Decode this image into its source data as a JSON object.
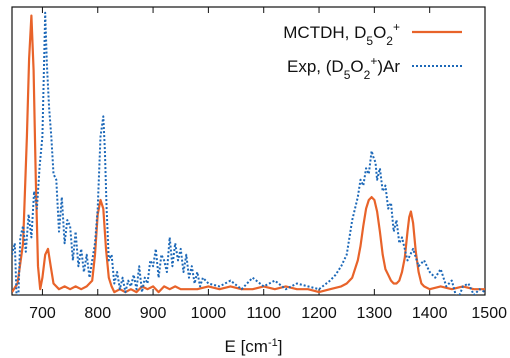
{
  "chart_data": {
    "type": "line",
    "xlabel_main": "E [cm",
    "xlabel_sup": "-1",
    "xlabel_close": "]",
    "ylabel": "",
    "xlim": [
      645,
      1500
    ],
    "ylim": [
      0,
      1.0
    ],
    "x_ticks": [
      700,
      800,
      900,
      1000,
      1100,
      1200,
      1300,
      1400,
      1500
    ],
    "grid": false,
    "legend_position": "top-right",
    "legend": [
      {
        "parts": [
          {
            "t": "MCTDH, D",
            "s": "normal"
          },
          {
            "t": "5",
            "s": "sub"
          },
          {
            "t": "O",
            "s": "normal"
          },
          {
            "t": "2",
            "s": "sub"
          },
          {
            "t": "+",
            "s": "sup"
          }
        ]
      },
      {
        "parts": [
          {
            "t": "Exp, (D",
            "s": "normal"
          },
          {
            "t": "5",
            "s": "sub"
          },
          {
            "t": "O",
            "s": "normal"
          },
          {
            "t": "2",
            "s": "sub"
          },
          {
            "t": "+",
            "s": "sup"
          },
          {
            "t": ")Ar",
            "s": "normal"
          }
        ]
      }
    ],
    "series": [
      {
        "color": "#e8632a",
        "style": "solid",
        "x": [
          645,
          655,
          665,
          672,
          676,
          680,
          684,
          688,
          692,
          696,
          700,
          705,
          710,
          715,
          720,
          730,
          740,
          750,
          760,
          770,
          780,
          790,
          795,
          800,
          805,
          810,
          815,
          820,
          825,
          830,
          840,
          850,
          860,
          870,
          880,
          890,
          900,
          910,
          920,
          930,
          940,
          950,
          960,
          980,
          1000,
          1020,
          1040,
          1060,
          1080,
          1100,
          1120,
          1140,
          1160,
          1180,
          1200,
          1220,
          1240,
          1250,
          1260,
          1270,
          1275,
          1280,
          1285,
          1290,
          1295,
          1300,
          1305,
          1310,
          1315,
          1320,
          1325,
          1330,
          1335,
          1340,
          1345,
          1350,
          1355,
          1360,
          1363,
          1366,
          1370,
          1375,
          1380,
          1385,
          1390,
          1400,
          1420,
          1440,
          1460,
          1480,
          1500
        ],
        "y": [
          0.01,
          0.04,
          0.18,
          0.55,
          0.82,
          0.97,
          0.78,
          0.4,
          0.1,
          0.02,
          0.06,
          0.14,
          0.16,
          0.1,
          0.04,
          0.02,
          0.03,
          0.02,
          0.03,
          0.02,
          0.03,
          0.05,
          0.14,
          0.28,
          0.33,
          0.3,
          0.16,
          0.06,
          0.03,
          0.01,
          0.02,
          0.01,
          0.02,
          0.01,
          0.03,
          0.02,
          0.03,
          0.01,
          0.03,
          0.02,
          0.03,
          0.02,
          0.02,
          0.02,
          0.03,
          0.02,
          0.03,
          0.02,
          0.02,
          0.03,
          0.02,
          0.03,
          0.02,
          0.02,
          0.01,
          0.02,
          0.03,
          0.04,
          0.06,
          0.12,
          0.17,
          0.24,
          0.3,
          0.33,
          0.34,
          0.33,
          0.29,
          0.22,
          0.14,
          0.09,
          0.07,
          0.05,
          0.04,
          0.04,
          0.05,
          0.08,
          0.13,
          0.22,
          0.27,
          0.29,
          0.25,
          0.15,
          0.08,
          0.04,
          0.03,
          0.02,
          0.03,
          0.02,
          0.03,
          0.02,
          0.02
        ]
      },
      {
        "color": "#1c68b8",
        "style": "dotted",
        "x": [
          645,
          650,
          655,
          660,
          665,
          670,
          675,
          680,
          685,
          690,
          695,
          700,
          705,
          708,
          712,
          716,
          720,
          725,
          730,
          735,
          740,
          745,
          750,
          755,
          760,
          765,
          770,
          775,
          780,
          785,
          790,
          795,
          800,
          805,
          810,
          813,
          816,
          820,
          825,
          830,
          835,
          840,
          845,
          850,
          855,
          860,
          865,
          870,
          875,
          880,
          885,
          890,
          895,
          900,
          905,
          910,
          915,
          920,
          925,
          930,
          935,
          940,
          945,
          950,
          955,
          960,
          965,
          970,
          975,
          980,
          985,
          990,
          1000,
          1020,
          1040,
          1060,
          1080,
          1100,
          1120,
          1140,
          1160,
          1180,
          1200,
          1220,
          1230,
          1240,
          1250,
          1260,
          1270,
          1275,
          1280,
          1285,
          1290,
          1295,
          1298,
          1302,
          1305,
          1310,
          1315,
          1320,
          1325,
          1330,
          1335,
          1340,
          1345,
          1350,
          1360,
          1370,
          1380,
          1390,
          1400,
          1410,
          1420,
          1430,
          1440,
          1450,
          1460,
          1470,
          1480,
          1490,
          1500
        ],
        "y": [
          0.14,
          0.18,
          -0.1,
          0.2,
          0.24,
          0.15,
          0.28,
          0.2,
          0.36,
          0.3,
          0.45,
          0.55,
          0.98,
          0.8,
          0.65,
          0.55,
          0.42,
          0.4,
          0.22,
          0.34,
          0.18,
          0.26,
          0.24,
          0.12,
          0.22,
          0.1,
          0.16,
          0.08,
          0.14,
          0.06,
          0.12,
          0.18,
          0.3,
          0.55,
          0.62,
          0.5,
          0.3,
          0.12,
          0.14,
          0.04,
          0.08,
          0.02,
          0.06,
          0.01,
          0.05,
          0.03,
          0.07,
          0.02,
          0.1,
          0.01,
          0.06,
          0.04,
          0.12,
          0.1,
          0.16,
          0.06,
          0.14,
          0.12,
          0.08,
          0.2,
          0.1,
          0.18,
          0.12,
          0.16,
          0.08,
          0.14,
          0.06,
          0.1,
          0.04,
          0.08,
          0.03,
          0.06,
          0.04,
          0.03,
          0.05,
          0.02,
          0.06,
          0.03,
          0.05,
          0.02,
          0.04,
          0.03,
          0.02,
          0.05,
          0.07,
          0.1,
          0.14,
          0.26,
          0.34,
          0.4,
          0.38,
          0.44,
          0.42,
          0.5,
          0.48,
          0.46,
          0.4,
          0.44,
          0.36,
          0.38,
          0.3,
          0.32,
          0.22,
          0.26,
          0.18,
          0.2,
          0.12,
          0.16,
          0.1,
          0.12,
          0.08,
          0.06,
          0.09,
          0.03,
          0.05,
          -0.02,
          0.03,
          0.04,
          0.0,
          0.02,
          0.01
        ]
      }
    ]
  }
}
